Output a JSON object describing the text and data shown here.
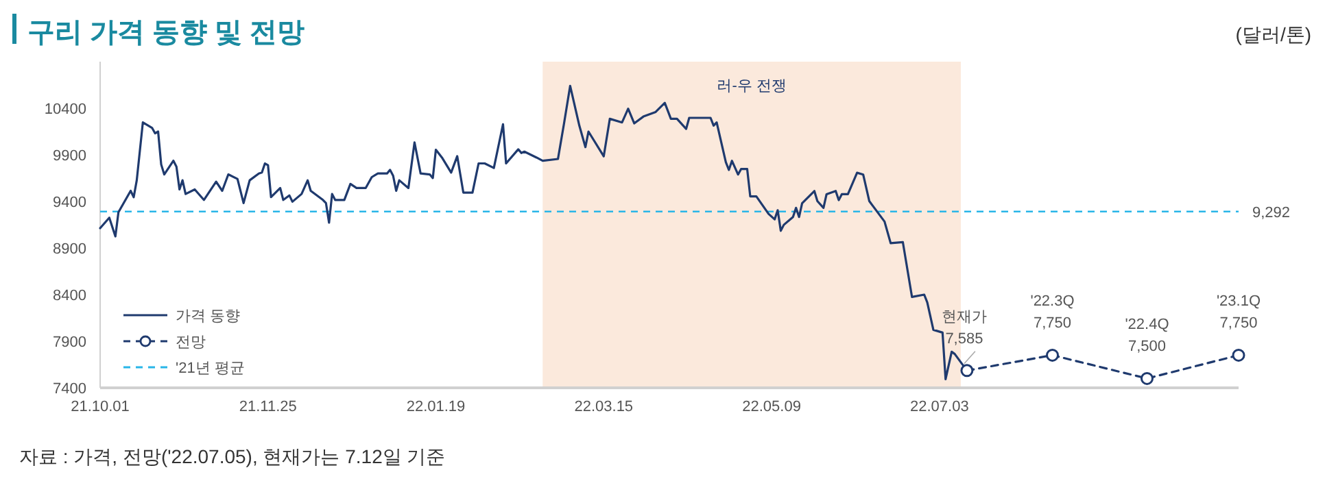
{
  "chart_data": {
    "type": "line",
    "title": "구리 가격 동향 및 전망",
    "ylabel": "(달러/톤)",
    "xlim": [
      "2021-10-01",
      "2022-10-09"
    ],
    "ylim": [
      7400,
      10900
    ],
    "xticks": [
      {
        "value": "2021-10-01",
        "label": "21.10.01"
      },
      {
        "value": "2021-11-25",
        "label": "21.11.25"
      },
      {
        "value": "2022-01-19",
        "label": "22.01.19"
      },
      {
        "value": "2022-03-15",
        "label": "22.03.15"
      },
      {
        "value": "2022-05-09",
        "label": "22.05.09"
      },
      {
        "value": "2022-07-03",
        "label": "22.07.03"
      }
    ],
    "yticks": [
      7400,
      7900,
      8400,
      8900,
      9400,
      9900,
      10400
    ],
    "grid": false,
    "legend": "bottom left",
    "series": [
      {
        "name": "가격 동향",
        "type": "line",
        "color": "#1f3a6e",
        "line_style": "solid",
        "marker": "none",
        "x": [
          "2021-10-01",
          "2021-10-04",
          "2021-10-06",
          "2021-10-07",
          "2021-10-11",
          "2021-10-12",
          "2021-10-13",
          "2021-10-15",
          "2021-10-18",
          "2021-10-19",
          "2021-10-20",
          "2021-10-21",
          "2021-10-22",
          "2021-10-25",
          "2021-10-26",
          "2021-10-27",
          "2021-10-28",
          "2021-10-29",
          "2021-11-01",
          "2021-11-04",
          "2021-11-08",
          "2021-11-10",
          "2021-11-12",
          "2021-11-15",
          "2021-11-17",
          "2021-11-19",
          "2021-11-22",
          "2021-11-23",
          "2021-11-24",
          "2021-11-25",
          "2021-11-26",
          "2021-11-29",
          "2021-11-30",
          "2021-12-02",
          "2021-12-03",
          "2021-12-06",
          "2021-12-08",
          "2021-12-09",
          "2021-12-13",
          "2021-12-14",
          "2021-12-15",
          "2021-12-16",
          "2021-12-17",
          "2021-12-20",
          "2021-12-22",
          "2021-12-24",
          "2021-12-27",
          "2021-12-29",
          "2021-12-31",
          "2022-01-03",
          "2022-01-04",
          "2022-01-05",
          "2022-01-06",
          "2022-01-07",
          "2022-01-10",
          "2022-01-12",
          "2022-01-14",
          "2022-01-17",
          "2022-01-18",
          "2022-01-19",
          "2022-01-21",
          "2022-01-24",
          "2022-01-26",
          "2022-01-28",
          "2022-01-31",
          "2022-02-02",
          "2022-02-04",
          "2022-02-07",
          "2022-02-10",
          "2022-02-11",
          "2022-02-15",
          "2022-02-16",
          "2022-02-17",
          "2022-02-21",
          "2022-02-23",
          "2022-02-28",
          "2022-03-02",
          "2022-03-04",
          "2022-03-07",
          "2022-03-09",
          "2022-03-10",
          "2022-03-15",
          "2022-03-17",
          "2022-03-21",
          "2022-03-23",
          "2022-03-25",
          "2022-03-28",
          "2022-03-30",
          "2022-04-01",
          "2022-04-04",
          "2022-04-06",
          "2022-04-08",
          "2022-04-11",
          "2022-04-12",
          "2022-04-19",
          "2022-04-20",
          "2022-04-21",
          "2022-04-24",
          "2022-04-25",
          "2022-04-26",
          "2022-04-28",
          "2022-04-29",
          "2022-05-01",
          "2022-05-02",
          "2022-05-04",
          "2022-05-08",
          "2022-05-10",
          "2022-05-11",
          "2022-05-12",
          "2022-05-13",
          "2022-05-16",
          "2022-05-17",
          "2022-05-18",
          "2022-05-19",
          "2022-05-23",
          "2022-05-24",
          "2022-05-26",
          "2022-05-27",
          "2022-05-30",
          "2022-05-31",
          "2022-06-01",
          "2022-06-03",
          "2022-06-06",
          "2022-06-08",
          "2022-06-10",
          "2022-06-15",
          "2022-06-17",
          "2022-06-21",
          "2022-06-24",
          "2022-06-28",
          "2022-06-29",
          "2022-07-01",
          "2022-07-04",
          "2022-07-05",
          "2022-07-07",
          "2022-07-08",
          "2022-07-12"
        ],
        "values": [
          9113,
          9225,
          9025,
          9284,
          9514,
          9446,
          9627,
          10248,
          10190,
          10131,
          10150,
          9798,
          9690,
          9837,
          9774,
          9529,
          9627,
          9480,
          9529,
          9416,
          9612,
          9514,
          9690,
          9642,
          9382,
          9627,
          9700,
          9710,
          9808,
          9788,
          9446,
          9544,
          9416,
          9465,
          9397,
          9480,
          9627,
          9514,
          9416,
          9382,
          9172,
          9480,
          9416,
          9416,
          9588,
          9544,
          9544,
          9661,
          9700,
          9700,
          9739,
          9676,
          9514,
          9627,
          9544,
          10033,
          9700,
          9690,
          9651,
          9955,
          9871,
          9710,
          9886,
          9495,
          9495,
          9808,
          9808,
          9759,
          10229,
          9808,
          9960,
          9920,
          9935,
          9871,
          9837,
          9856,
          10238,
          10640,
          10214,
          9983,
          10150,
          9885,
          10287,
          10248,
          10395,
          10238,
          10311,
          10336,
          10360,
          10458,
          10287,
          10287,
          10179,
          10297,
          10297,
          10214,
          10248,
          9822,
          9738,
          9836,
          9689,
          9748,
          9748,
          9454,
          9454,
          9267,
          9208,
          9306,
          9085,
          9149,
          9233,
          9331,
          9233,
          9380,
          9512,
          9404,
          9331,
          9478,
          9512,
          9414,
          9478,
          9478,
          9708,
          9689,
          9404,
          9184,
          8953,
          8963,
          8375,
          8400,
          8316,
          8022,
          7993,
          7493,
          7787,
          7763,
          7585
        ]
      },
      {
        "name": "전망",
        "type": "line",
        "color": "#1f3a6e",
        "line_style": "dashed",
        "marker": "circle",
        "x": [
          "2022-07-12",
          "2022-08-09",
          "2022-09-09",
          "2022-10-09"
        ],
        "values": [
          7585,
          7750,
          7500,
          7750
        ]
      }
    ],
    "ref_lines": [
      {
        "axis": "y",
        "value": 9292,
        "label": "'21년 평균",
        "color": "#29b6e8",
        "line_style": "dashed"
      }
    ],
    "bands": [
      {
        "axis": "x",
        "from": "2022-02-23",
        "to": "2022-07-10",
        "label": "러-우 전쟁",
        "color": "#fbe9dc"
      }
    ],
    "annotations": [
      {
        "text": "9,292",
        "x": "2022-10-09",
        "y": 9292
      },
      {
        "text": "현재가\n7,585",
        "x": "2022-07-12",
        "y": 7585
      },
      {
        "text": "'22.3Q\n7,750",
        "x": "2022-08-09",
        "y": 7750
      },
      {
        "text": "'22.4Q\n7,500",
        "x": "2022-09-09",
        "y": 7500
      },
      {
        "text": "'23.1Q\n7,750",
        "x": "2022-10-09",
        "y": 7750
      },
      "자료 : 가격, 전망('22.07.05), 현재가는 7.12일 기준"
    ]
  }
}
